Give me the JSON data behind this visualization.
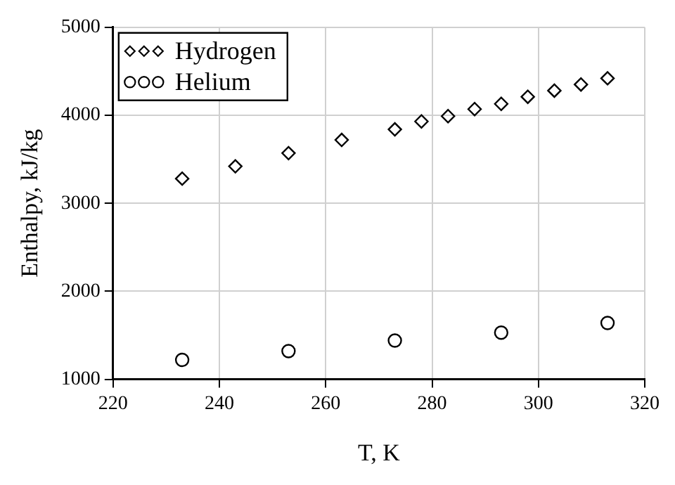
{
  "chart_data": {
    "type": "scatter",
    "xlabel": "T, K",
    "ylabel": "Enthalpy, kJ/kg",
    "xlim": [
      220,
      320
    ],
    "xticks": [
      220,
      240,
      260,
      280,
      300,
      320
    ],
    "ylim": [
      1000,
      5000
    ],
    "yticks": [
      1000,
      2000,
      3000,
      4000,
      5000
    ],
    "grid": true,
    "legend": "top left",
    "series": [
      {
        "name": "Hydrogen",
        "color": "#000000",
        "marker": "diamond",
        "x": [
          233,
          243,
          253,
          263,
          273,
          278,
          283,
          288,
          293,
          298,
          303,
          308,
          313
        ],
        "values": [
          3280,
          3420,
          3570,
          3720,
          3840,
          3930,
          3990,
          4070,
          4130,
          4210,
          4280,
          4350,
          4420
        ]
      },
      {
        "name": "Helium",
        "color": "#000000",
        "marker": "circle",
        "x": [
          233,
          253,
          273,
          293,
          313
        ],
        "values": [
          1220,
          1320,
          1440,
          1530,
          1640
        ]
      }
    ]
  }
}
